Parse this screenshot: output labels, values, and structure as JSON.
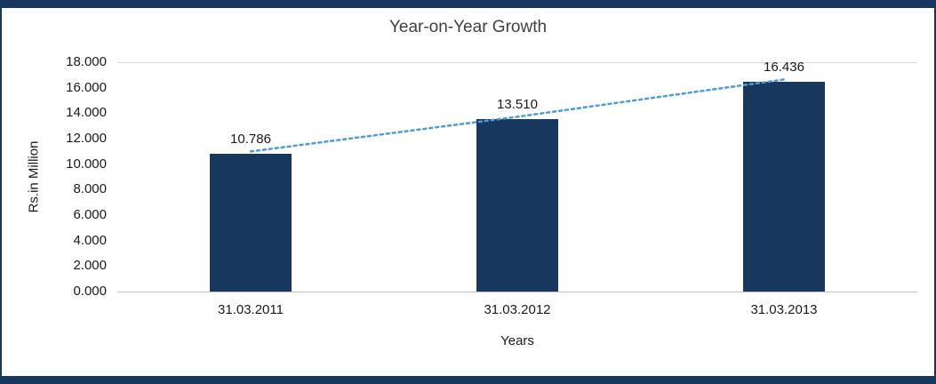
{
  "chart_data": {
    "type": "bar",
    "title": "Year-on-Year Growth",
    "xlabel": "Years",
    "ylabel": "Rs.in Million",
    "categories": [
      "31.03.2011",
      "31.03.2012",
      "31.03.2013"
    ],
    "values": [
      10786,
      13510,
      16436
    ],
    "value_labels": [
      "10.786",
      "13.510",
      "16.436"
    ],
    "ylim": [
      0,
      18000
    ],
    "ytick_step": 2000,
    "ytick_labels": [
      "0.000",
      "2.000",
      "4.000",
      "6.000",
      "8.000",
      "10.000",
      "12.000",
      "14.000",
      "16.000",
      "18.000"
    ],
    "grid": "top-border-only",
    "legend": "none",
    "bar_color": "#17375E",
    "frame_color": "#17375E",
    "trendline": {
      "type": "linear",
      "style": "dotted",
      "color": "#4F9BD5"
    }
  }
}
